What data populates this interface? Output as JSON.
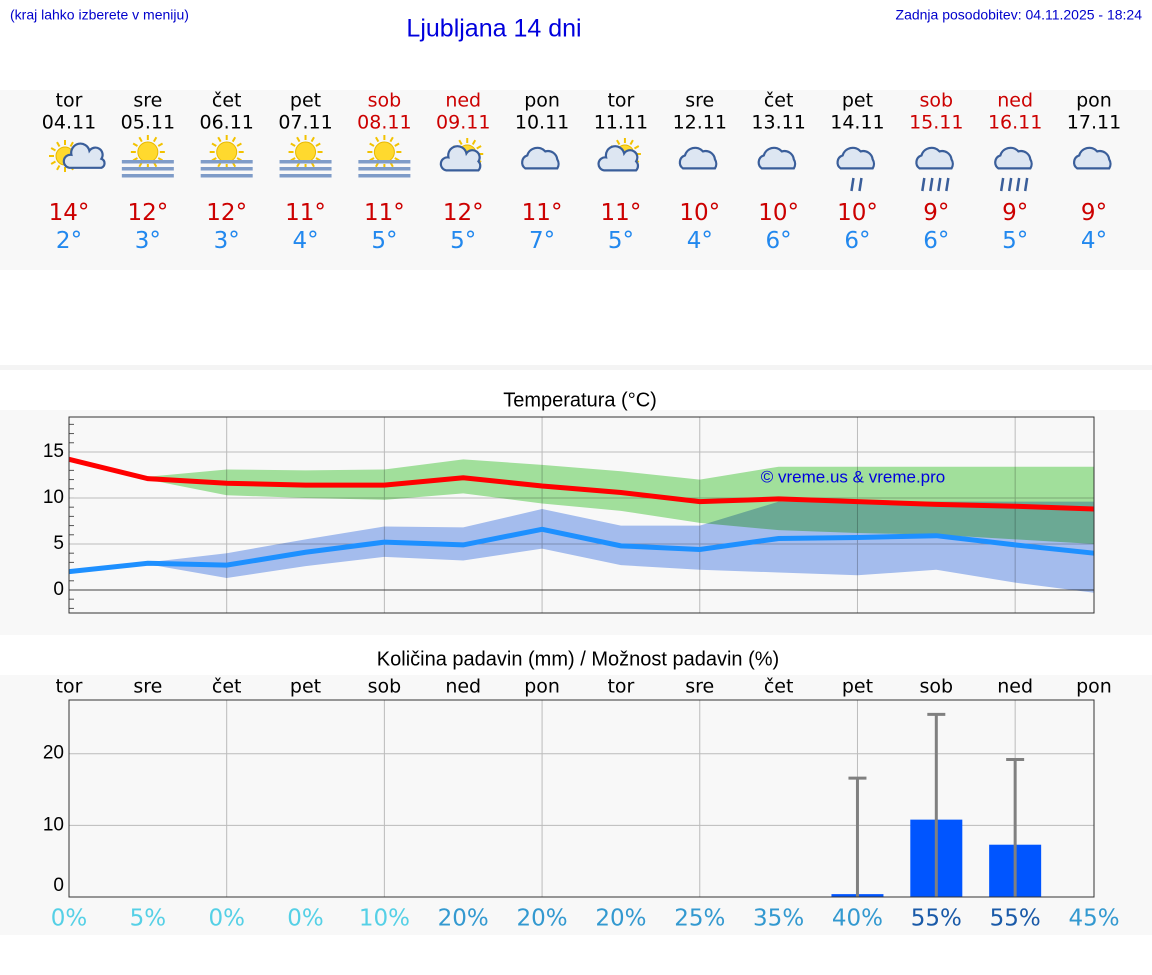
{
  "header": {
    "note": "(kraj lahko izberete v meniju)",
    "title": "Ljubljana 14 dni",
    "updated": "Zadnja posodobitev: 04.11.2025 - 18:24"
  },
  "days": [
    {
      "name": "tor",
      "date": "04.11",
      "high": 14,
      "low": 2,
      "color": "#000000"
    },
    {
      "name": "sre",
      "date": "05.11",
      "high": 12,
      "low": 3,
      "color": "#000000"
    },
    {
      "name": "čet",
      "date": "06.11",
      "high": 12,
      "low": 3,
      "color": "#000000"
    },
    {
      "name": "pet",
      "date": "07.11",
      "high": 11,
      "low": 4,
      "color": "#000000"
    },
    {
      "name": "sob",
      "date": "08.11",
      "high": 11,
      "low": 5,
      "color": "#cc0000"
    },
    {
      "name": "ned",
      "date": "09.11",
      "high": 12,
      "low": 5,
      "color": "#cc0000"
    },
    {
      "name": "pon",
      "date": "10.11",
      "high": 11,
      "low": 7,
      "color": "#000000"
    },
    {
      "name": "tor",
      "date": "11.11",
      "high": 11,
      "low": 5,
      "color": "#000000"
    },
    {
      "name": "sre",
      "date": "12.11",
      "high": 10,
      "low": 4,
      "color": "#000000"
    },
    {
      "name": "čet",
      "date": "13.11",
      "high": 10,
      "low": 6,
      "color": "#000000"
    },
    {
      "name": "pet",
      "date": "14.11",
      "high": 10,
      "low": 6,
      "color": "#000000"
    },
    {
      "name": "sob",
      "date": "15.11",
      "high": 9,
      "low": 6,
      "color": "#cc0000"
    },
    {
      "name": "ned",
      "date": "16.11",
      "high": 9,
      "low": 5,
      "color": "#cc0000"
    },
    {
      "name": "pon",
      "date": "17.11",
      "high": 9,
      "low": 4,
      "color": "#000000"
    }
  ],
  "chart_data": [
    {
      "type": "line",
      "title": "Temperatura (°C)",
      "annotation": "© vreme.us & vreme.pro",
      "ylim": [
        -2.5,
        18.8
      ],
      "yticks": [
        0,
        5,
        10,
        15
      ],
      "grid": true,
      "bands": [
        {
          "color": "#a6e6a0",
          "high": [
            null,
            12.3,
            13.1,
            13.0,
            13.1,
            14.2,
            13.6,
            12.9,
            12.0,
            13.4,
            13.4,
            13.4,
            13.4,
            13.4
          ],
          "low": [
            null,
            12.0,
            10.3,
            10.0,
            9.8,
            10.5,
            9.4,
            8.6,
            7.3,
            6.5,
            6.2,
            6.0,
            5.5,
            5.0
          ]
        },
        {
          "color": "#a9c2f4",
          "high": [
            null,
            3.0,
            4.0,
            5.5,
            6.9,
            6.8,
            8.8,
            7.0,
            7.0,
            9.6,
            9.6,
            9.6,
            9.6,
            9.6
          ],
          "low": [
            null,
            2.8,
            1.3,
            2.6,
            3.6,
            3.2,
            4.5,
            2.7,
            2.2,
            1.9,
            1.6,
            2.2,
            0.8,
            -0.3
          ]
        }
      ],
      "series": [
        {
          "color": "#ff0000",
          "values": [
            14.2,
            12.1,
            11.6,
            11.4,
            11.4,
            12.2,
            11.3,
            10.6,
            9.6,
            9.9,
            9.6,
            9.3,
            9.1,
            8.8
          ]
        },
        {
          "color": "#1e90ff",
          "values": [
            2.0,
            2.9,
            2.7,
            4.1,
            5.2,
            4.9,
            6.6,
            4.8,
            4.4,
            5.6,
            5.7,
            5.9,
            4.9,
            4.0
          ]
        }
      ]
    },
    {
      "type": "bar",
      "title": "Količina padavin (mm) / Možnost padavin (%)",
      "categories": [
        "tor",
        "sre",
        "čet",
        "pet",
        "sob",
        "ned",
        "pon",
        "tor",
        "sre",
        "čet",
        "pet",
        "sob",
        "ned",
        "pon"
      ],
      "values": [
        0,
        0,
        0,
        0,
        0,
        0,
        0,
        0,
        0,
        0,
        0.4,
        10.8,
        7.3,
        0
      ],
      "high": [
        null,
        null,
        null,
        null,
        null,
        null,
        null,
        null,
        null,
        null,
        16.6,
        25.5,
        19.2,
        null
      ],
      "probability": [
        0,
        5,
        0,
        0,
        10,
        20,
        20,
        20,
        25,
        35,
        40,
        55,
        55,
        45
      ],
      "value_labels": [
        "0%",
        "5%",
        "0%",
        "0%",
        "10%",
        "20%",
        "20%",
        "20%",
        "25%",
        "35%",
        "40%",
        "55%",
        "55%",
        "45%"
      ],
      "color": "#0055ff",
      "ylim": [
        0,
        27.5
      ],
      "yticks": [
        0,
        10,
        20
      ],
      "grid": true
    }
  ]
}
